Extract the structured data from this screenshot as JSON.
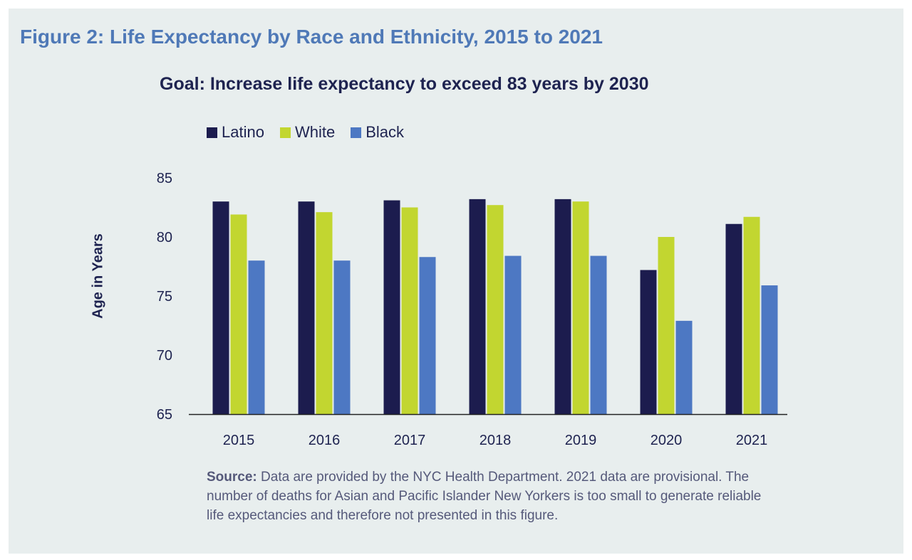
{
  "figure_title": "Figure 2: Life Expectancy by Race and Ethnicity, 2015 to 2021",
  "source": {
    "label": "Source:",
    "text": "Data are provided by the NYC Health Department. 2021 data are provisional. The number of deaths for Asian and Pacific Islander New Yorkers is too small to generate reliable life expectancies and therefore not presented in this figure."
  },
  "chart_data": {
    "type": "bar",
    "title": "Goal: Increase life expectancy to exceed 83 years by 2030",
    "ylabel": "Age in Years",
    "xlabel": "",
    "ylim": [
      65,
      85
    ],
    "yticks": [
      "65",
      "70",
      "75",
      "80",
      "85"
    ],
    "grid": false,
    "legend_position": "top-left",
    "categories": [
      "2015",
      "2016",
      "2017",
      "2018",
      "2019",
      "2020",
      "2021"
    ],
    "series": [
      {
        "name": "Latino",
        "color": "#1c1c4e",
        "values": [
          83.0,
          83.0,
          83.1,
          83.2,
          83.2,
          77.2,
          81.1
        ]
      },
      {
        "name": "White",
        "color": "#c2d630",
        "values": [
          81.9,
          82.1,
          82.5,
          82.7,
          83.0,
          80.0,
          81.7
        ]
      },
      {
        "name": "Black",
        "color": "#4d78c3",
        "values": [
          78.0,
          78.0,
          78.3,
          78.4,
          78.4,
          72.9,
          75.9
        ]
      }
    ]
  }
}
